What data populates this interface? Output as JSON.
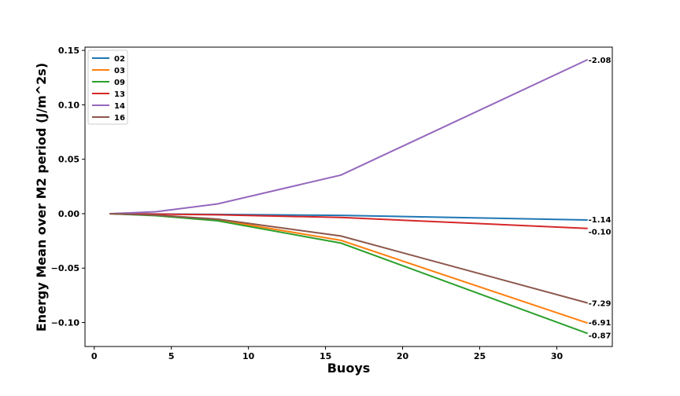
{
  "chart_data": {
    "type": "line",
    "title": "",
    "xlabel": "Buoys",
    "ylabel": "Energy Mean over M2 period (J/m^2s)",
    "xlim": [
      -0.6,
      33.6
    ],
    "ylim": [
      -0.122,
      0.153
    ],
    "x_ticks": [
      0,
      5,
      10,
      15,
      20,
      25,
      30
    ],
    "y_ticks": [
      -0.1,
      -0.05,
      0.0,
      0.05,
      0.1,
      0.15
    ],
    "y_tick_labels": [
      "−0.10",
      "−0.05",
      "0.00",
      "0.05",
      "0.10",
      "0.15"
    ],
    "x": [
      1,
      4,
      8,
      16,
      32
    ],
    "legend_position": "top-left",
    "grid": false,
    "series": [
      {
        "name": "02",
        "color": "#1f77b4",
        "values": [
          0.0,
          -0.0003,
          -0.0007,
          -0.0015,
          -0.0058
        ],
        "end_label": "-1.14"
      },
      {
        "name": "03",
        "color": "#ff7f0e",
        "values": [
          0.0,
          -0.0015,
          -0.0055,
          -0.0245,
          -0.1005
        ],
        "end_label": "-6.91"
      },
      {
        "name": "09",
        "color": "#2ca02c",
        "values": [
          0.0,
          -0.0018,
          -0.0065,
          -0.027,
          -0.11
        ],
        "end_label": "-0.87"
      },
      {
        "name": "13",
        "color": "#d62728",
        "values": [
          0.0,
          -0.0004,
          -0.001,
          -0.0035,
          -0.0135
        ],
        "end_label": "-0.10"
      },
      {
        "name": "14",
        "color": "#9467bd",
        "values": [
          0.0,
          0.0018,
          0.009,
          0.0355,
          0.1415
        ],
        "end_label": "-2.08"
      },
      {
        "name": "16",
        "color": "#8c564b",
        "values": [
          0.0,
          -0.0013,
          -0.005,
          -0.0205,
          -0.082
        ],
        "end_label": "-7.29"
      }
    ]
  }
}
